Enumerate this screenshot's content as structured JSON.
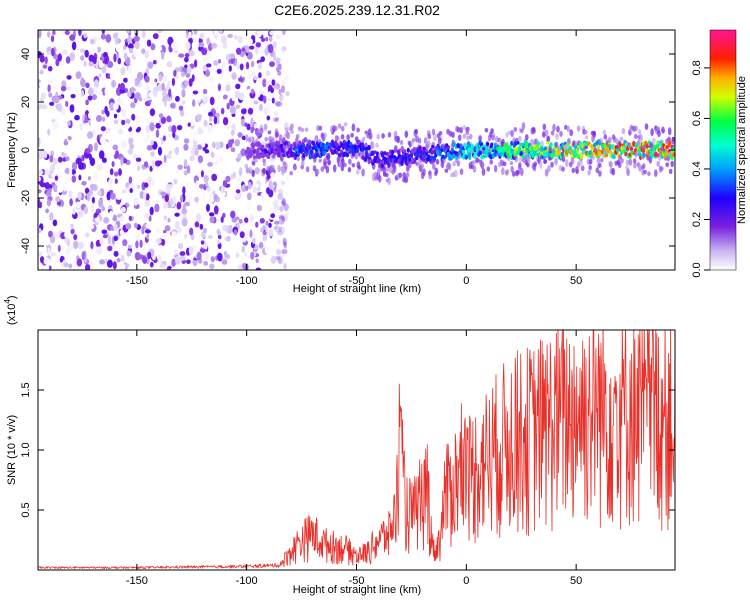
{
  "title": "C2E6.2025.239.12.31.R02",
  "chart_data": [
    {
      "type": "heatmap",
      "xlabel": "Height of straight line (km)",
      "ylabel": "Frequency (Hz)",
      "xlim": [
        -195,
        95
      ],
      "ylim": [
        -50,
        50
      ],
      "x_ticks": [
        -150,
        -100,
        -50,
        0,
        50
      ],
      "y_ticks": [
        -40,
        -20,
        0,
        20,
        40
      ],
      "colorbar": {
        "label": "Normalized spectral amplitude",
        "range": [
          0,
          0.95
        ],
        "ticks": [
          "0.0",
          "0.2",
          "0.4",
          "0.6",
          "0.8"
        ],
        "colors": [
          "#ffffff",
          "#a07ae0",
          "#6a00e8",
          "#0000ff",
          "#00e5ff",
          "#00ff66",
          "#ffff00",
          "#ff8800",
          "#ff0000",
          "#ff1493"
        ]
      },
      "noise_region": [
        -195,
        -85
      ],
      "signal_track": [
        {
          "x": -100,
          "y": 0,
          "z": 0.15
        },
        {
          "x": -85,
          "y": 0,
          "z": 0.3
        },
        {
          "x": -70,
          "y": 0,
          "z": 0.38
        },
        {
          "x": -50,
          "y": 1,
          "z": 0.35
        },
        {
          "x": -40,
          "y": -4,
          "z": 0.3
        },
        {
          "x": -30,
          "y": -3,
          "z": 0.3
        },
        {
          "x": -20,
          "y": -2,
          "z": 0.32
        },
        {
          "x": -10,
          "y": -1,
          "z": 0.38
        },
        {
          "x": 0,
          "y": 0,
          "z": 0.55
        },
        {
          "x": 20,
          "y": 0,
          "z": 0.6
        },
        {
          "x": 40,
          "y": 0,
          "z": 0.7
        },
        {
          "x": 60,
          "y": 0,
          "z": 0.8
        },
        {
          "x": 80,
          "y": 0,
          "z": 0.85
        },
        {
          "x": 95,
          "y": 0,
          "z": 0.88
        }
      ]
    },
    {
      "type": "line",
      "xlabel": "Height of straight line (km)",
      "ylabel": "SNR (10 * v/v)",
      "scale_label": "(x10",
      "scale_exponent": "4",
      "scale_label_end": ")",
      "xlim": [
        -195,
        95
      ],
      "ylim": [
        0,
        2.0
      ],
      "x_ticks": [
        -150,
        -100,
        -50,
        0,
        50
      ],
      "y_ticks": [
        "0.5",
        "1.0",
        "1.5"
      ],
      "color": "#e8302a",
      "series": [
        {
          "x": [
            -195,
            -150,
            -100,
            -85,
            -80,
            -75,
            -70,
            -65,
            -60,
            -55,
            -50,
            -45,
            -40,
            -35,
            -32,
            -30,
            -28,
            -25,
            -20,
            -18,
            -15,
            -12,
            -10,
            -5,
            0,
            5,
            10,
            20,
            30,
            40,
            50,
            60,
            70,
            80,
            90,
            95
          ],
          "y": [
            0.02,
            0.02,
            0.03,
            0.04,
            0.15,
            0.25,
            0.3,
            0.22,
            0.2,
            0.18,
            0.12,
            0.15,
            0.25,
            0.3,
            0.5,
            1.0,
            0.55,
            0.45,
            0.55,
            0.75,
            0.15,
            0.25,
            0.6,
            0.75,
            0.8,
            0.85,
            0.95,
            1.1,
            1.15,
            1.25,
            1.3,
            1.35,
            1.32,
            1.3,
            1.3,
            1.28
          ]
        }
      ]
    }
  ]
}
